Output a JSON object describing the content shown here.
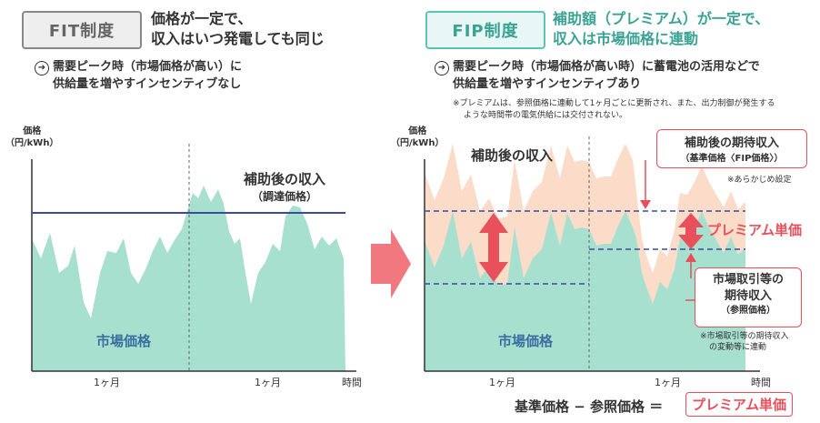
{
  "fit": {
    "badge": "FIT制度",
    "heading_line1": "価格が一定で、",
    "heading_line2": "収入はいつ発電しても同じ",
    "bullet_line1": "需要ピーク時（市場価格が高い）に",
    "bullet_line2": "供給量を増やすインセンティブなし",
    "y_label_line1": "価格",
    "y_label_line2": "（円/kWh）",
    "after_subsidy_label": "補助後の収入",
    "after_subsidy_sub": "（調達価格）",
    "market_price_label": "市場価格",
    "x_tick1": "1ヶ月",
    "x_tick2": "1ヶ月",
    "x_axis_label": "時間"
  },
  "fip": {
    "badge": "FIP制度",
    "heading_line1": "補助額（プレミアム）が一定で、",
    "heading_line2": "収入は市場価格に連動",
    "bullet_line1": "需要ピーク時（市場価格が高い時）に蓄電池の活用などで",
    "bullet_line2": "供給量を増やすインセンティブあり",
    "note_line1": "※プレミアムは、参照価格に連動して1ヶ月ごとに更新され、また、出力制御が発生する",
    "note_line2": "ような時間帯の電気供給には交付されない。",
    "y_label_line1": "価格",
    "y_label_line2": "（円/kWh）",
    "after_subsidy_label": "補助後の収入",
    "market_price_label": "市場価格",
    "expected_income_line1": "補助後の期待収入",
    "expected_income_line2": "（基準価格〈FIP価格〉）",
    "preset_note": "※あらかじめ設定",
    "premium_label": "プレミアム単価",
    "market_expected_line1": "市場取引等の",
    "market_expected_line2": "期待収入",
    "market_expected_line3": "（参照価格）",
    "linked_note_line1": "※市場取引等の期待収入",
    "linked_note_line2": "の変動等に連動",
    "x_tick1": "1ヶ月",
    "x_tick2": "1ヶ月",
    "x_axis_label": "時間",
    "formula_left": "基準価格 − 参照価格 ＝",
    "formula_right": "プレミアム単価"
  },
  "colors": {
    "teal": "#a8e0d0",
    "peach": "#fbdcc8",
    "navy": "#3b4aa0",
    "red": "#e8505b",
    "heading_teal": "#3aa393"
  },
  "icons": [
    "arrow-bullet-icon",
    "big-arrow-right-icon",
    "double-arrow-icon"
  ]
}
